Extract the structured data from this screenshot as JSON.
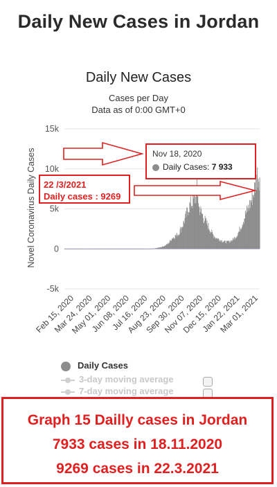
{
  "page": {
    "title": "Daily New Cases in Jordan"
  },
  "chart_data": {
    "type": "bar",
    "title": "Daily New Cases",
    "subtitle_line1": "Cases per Day",
    "subtitle_line2": "Data as of 0:00 GMT+0",
    "ylabel": "Novel Coronavirus Daily Cases",
    "xlabel": "",
    "ylim": [
      -5000,
      15000
    ],
    "y_ticks": [
      {
        "value": 15000,
        "label": "15k"
      },
      {
        "value": 10000,
        "label": "10k"
      },
      {
        "value": 5000,
        "label": "5k"
      },
      {
        "value": 0,
        "label": "0"
      },
      {
        "value": -5000,
        "label": "-5k"
      }
    ],
    "x_ticks": [
      "Feb 15, 2020",
      "Mar 24, 2020",
      "May 01, 2020",
      "Jun 08, 2020",
      "Jul 16, 2020",
      "Aug 23, 2020",
      "Sep 30, 2020",
      "Nov 07, 2020",
      "Dec 15, 2020",
      "Jan 22, 2021",
      "Mar 01, 2021"
    ],
    "x_range": [
      "Feb 15, 2020",
      "Mar 28, 2021"
    ],
    "series": [
      {
        "name": "Daily Cases",
        "color": "#8c8c8c",
        "weekly_points": [
          {
            "date": "2020-02-15",
            "value": 0
          },
          {
            "date": "2020-03-21",
            "value": 15
          },
          {
            "date": "2020-04-04",
            "value": 20
          },
          {
            "date": "2020-05-02",
            "value": 10
          },
          {
            "date": "2020-06-06",
            "value": 15
          },
          {
            "date": "2020-07-04",
            "value": 10
          },
          {
            "date": "2020-08-01",
            "value": 15
          },
          {
            "date": "2020-08-15",
            "value": 30
          },
          {
            "date": "2020-08-22",
            "value": 60
          },
          {
            "date": "2020-08-29",
            "value": 150
          },
          {
            "date": "2020-09-05",
            "value": 250
          },
          {
            "date": "2020-09-12",
            "value": 400
          },
          {
            "date": "2020-09-19",
            "value": 700
          },
          {
            "date": "2020-09-26",
            "value": 1300
          },
          {
            "date": "2020-10-03",
            "value": 1600
          },
          {
            "date": "2020-10-10",
            "value": 1900
          },
          {
            "date": "2020-10-17",
            "value": 2800
          },
          {
            "date": "2020-10-24",
            "value": 3800
          },
          {
            "date": "2020-10-31",
            "value": 5200
          },
          {
            "date": "2020-11-07",
            "value": 5800
          },
          {
            "date": "2020-11-14",
            "value": 6300
          },
          {
            "date": "2020-11-18",
            "value": 7933
          },
          {
            "date": "2020-11-21",
            "value": 5200
          },
          {
            "date": "2020-11-28",
            "value": 4300
          },
          {
            "date": "2020-12-05",
            "value": 3400
          },
          {
            "date": "2020-12-12",
            "value": 2700
          },
          {
            "date": "2020-12-19",
            "value": 1900
          },
          {
            "date": "2020-12-26",
            "value": 1400
          },
          {
            "date": "2021-01-02",
            "value": 1200
          },
          {
            "date": "2021-01-09",
            "value": 1000
          },
          {
            "date": "2021-01-16",
            "value": 850
          },
          {
            "date": "2021-01-23",
            "value": 900
          },
          {
            "date": "2021-01-30",
            "value": 1100
          },
          {
            "date": "2021-02-06",
            "value": 1500
          },
          {
            "date": "2021-02-13",
            "value": 2200
          },
          {
            "date": "2021-02-20",
            "value": 3300
          },
          {
            "date": "2021-02-27",
            "value": 4400
          },
          {
            "date": "2021-03-06",
            "value": 5300
          },
          {
            "date": "2021-03-13",
            "value": 6500
          },
          {
            "date": "2021-03-20",
            "value": 8200
          },
          {
            "date": "2021-03-22",
            "value": 9269
          },
          {
            "date": "2021-03-28",
            "value": 9100
          }
        ]
      }
    ],
    "legend": [
      {
        "label": "Daily Cases",
        "active": true
      },
      {
        "label": "3-day moving average",
        "active": false
      },
      {
        "label": "7-day moving average",
        "active": false
      }
    ],
    "tooltip": {
      "date": "Nov 18, 2020",
      "label": "Daily Cases:",
      "value": "7 933"
    },
    "annotation": {
      "line1": "22 /3/2021",
      "line2": "Daily cases : 9269"
    },
    "colors": {
      "bars": "#8c8c8c",
      "grid": "#e6e6e6",
      "zero_line": "#c0c7e6",
      "annotation": "#e02020"
    }
  },
  "caption": {
    "line1": "Graph 15 Dailly cases in Jordan",
    "line2": "7933 cases in 18.11.2020",
    "line3": "9269 cases in 22.3.2021"
  }
}
